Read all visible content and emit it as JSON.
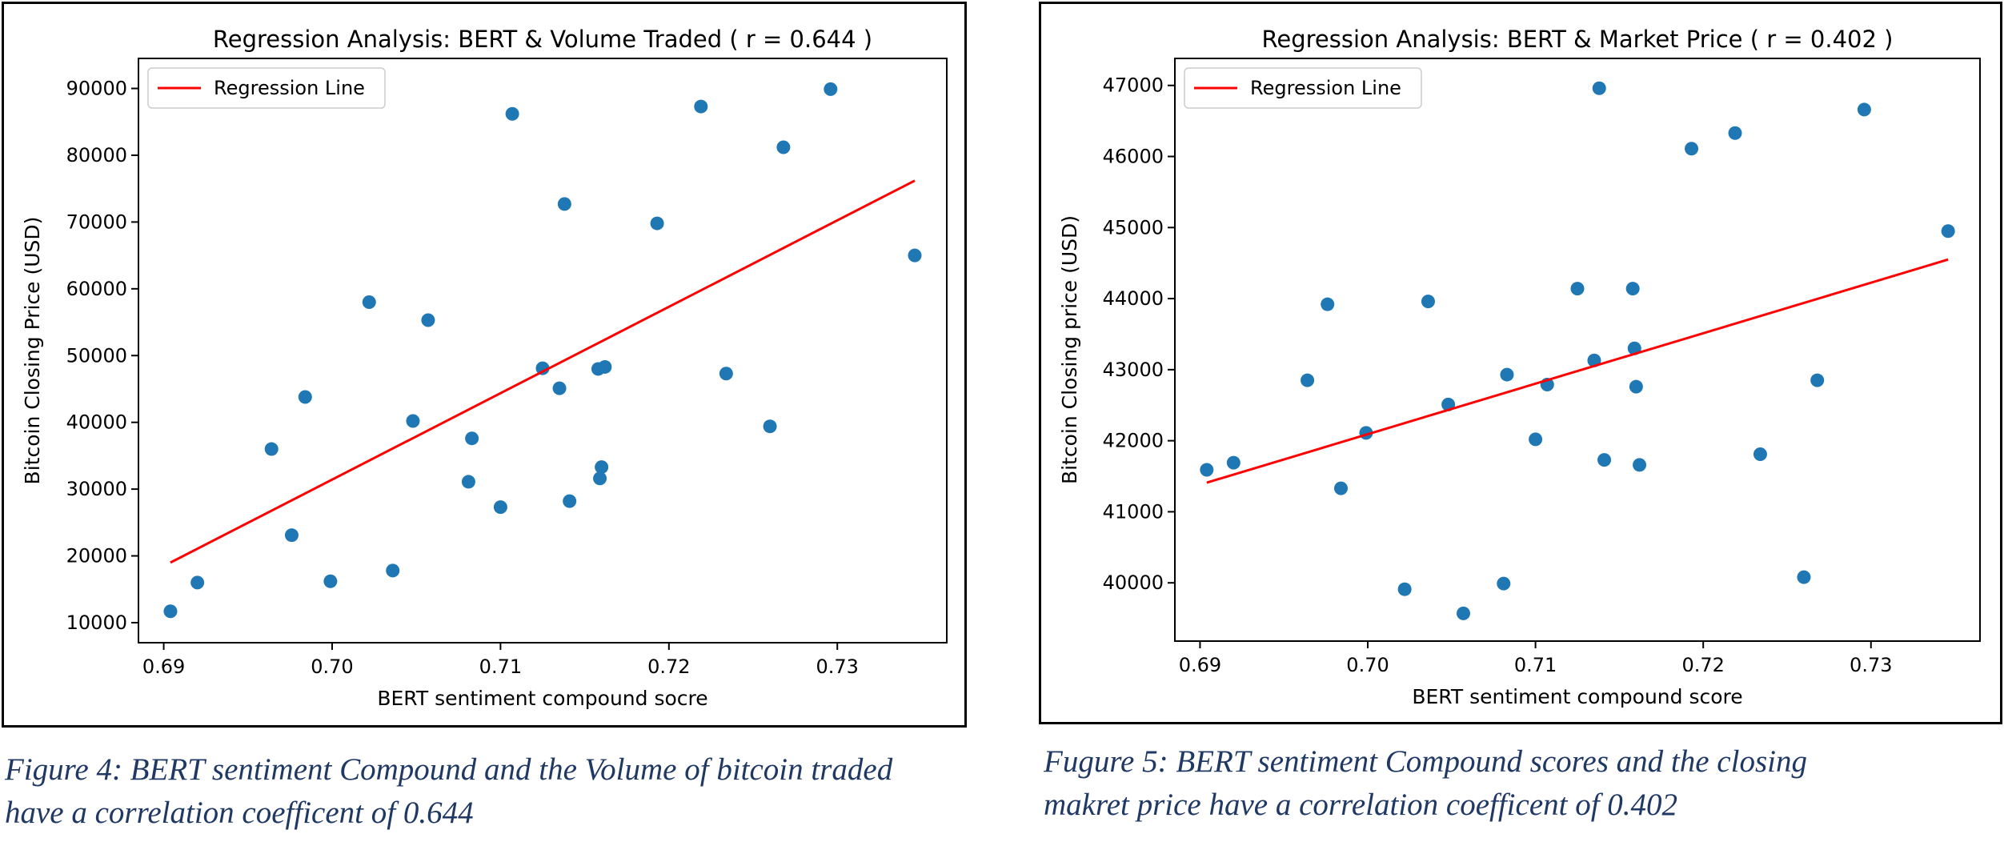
{
  "figures": [
    {
      "caption_lines": [
        "Figure 4: BERT sentiment Compound and the Volume of bitcoin traded",
        "have a correlation coefficent of 0.644"
      ]
    },
    {
      "caption_lines": [
        "Fugure 5: BERT sentiment Compound scores and the closing",
        "makret price have a correlation coefficent of 0.402"
      ]
    }
  ],
  "colors": {
    "points": "#1f77b4",
    "regression": "#ff0000",
    "caption": "#1f3864"
  },
  "chart_data": [
    {
      "type": "scatter",
      "title": "Regression Analysis: BERT & Volume Traded ( r = 0.644 )",
      "xlabel": "BERT sentiment compound socre",
      "ylabel": "Bitcoin Closing Price (USD)",
      "xlim": [
        0.6885,
        0.7365
      ],
      "ylim": [
        7000,
        94500
      ],
      "xticks": [
        0.69,
        0.7,
        0.71,
        0.72,
        0.73
      ],
      "xtick_labels": [
        "0.69",
        "0.70",
        "0.71",
        "0.72",
        "0.73"
      ],
      "yticks": [
        10000,
        20000,
        30000,
        40000,
        50000,
        60000,
        70000,
        80000,
        90000
      ],
      "ytick_labels": [
        "10000",
        "20000",
        "30000",
        "40000",
        "50000",
        "60000",
        "70000",
        "80000",
        "90000"
      ],
      "legend": {
        "entries": [
          "Regression Line"
        ],
        "placement": "top-left"
      },
      "grid": false,
      "points": [
        {
          "x": 0.6904,
          "y": 11700
        },
        {
          "x": 0.692,
          "y": 16000
        },
        {
          "x": 0.6964,
          "y": 36000
        },
        {
          "x": 0.6976,
          "y": 23100
        },
        {
          "x": 0.6984,
          "y": 43800
        },
        {
          "x": 0.6999,
          "y": 16200
        },
        {
          "x": 0.7022,
          "y": 58000
        },
        {
          "x": 0.7036,
          "y": 17800
        },
        {
          "x": 0.7048,
          "y": 40200
        },
        {
          "x": 0.7057,
          "y": 55300
        },
        {
          "x": 0.7081,
          "y": 31100
        },
        {
          "x": 0.7083,
          "y": 37600
        },
        {
          "x": 0.71,
          "y": 27300
        },
        {
          "x": 0.7107,
          "y": 86200
        },
        {
          "x": 0.7125,
          "y": 48100
        },
        {
          "x": 0.7135,
          "y": 45100
        },
        {
          "x": 0.7138,
          "y": 72700
        },
        {
          "x": 0.7141,
          "y": 28200
        },
        {
          "x": 0.7158,
          "y": 48000
        },
        {
          "x": 0.7159,
          "y": 31600
        },
        {
          "x": 0.716,
          "y": 33300
        },
        {
          "x": 0.7162,
          "y": 48300
        },
        {
          "x": 0.7193,
          "y": 69800
        },
        {
          "x": 0.7219,
          "y": 87300
        },
        {
          "x": 0.7234,
          "y": 47300
        },
        {
          "x": 0.726,
          "y": 39400
        },
        {
          "x": 0.7268,
          "y": 81200
        },
        {
          "x": 0.7296,
          "y": 89900
        },
        {
          "x": 0.7346,
          "y": 65000
        }
      ],
      "regression_line": {
        "x": [
          0.6904,
          0.7346
        ],
        "y": [
          19000,
          76200
        ]
      }
    },
    {
      "type": "scatter",
      "title": "Regression Analysis: BERT & Market Price ( r = 0.402 )",
      "xlabel": "BERT sentiment compound score",
      "ylabel": "Bitcoin Closing price (USD)",
      "xlim": [
        0.6885,
        0.7365
      ],
      "ylim": [
        39180,
        47380
      ],
      "xticks": [
        0.69,
        0.7,
        0.71,
        0.72,
        0.73
      ],
      "xtick_labels": [
        "0.69",
        "0.70",
        "0.71",
        "0.72",
        "0.73"
      ],
      "yticks": [
        40000,
        41000,
        42000,
        43000,
        44000,
        45000,
        46000,
        47000
      ],
      "ytick_labels": [
        "40000",
        "41000",
        "42000",
        "43000",
        "44000",
        "45000",
        "46000",
        "47000"
      ],
      "legend": {
        "entries": [
          "Regression Line"
        ],
        "placement": "top-left"
      },
      "grid": false,
      "points": [
        {
          "x": 0.6904,
          "y": 41590
        },
        {
          "x": 0.692,
          "y": 41690
        },
        {
          "x": 0.6964,
          "y": 42850
        },
        {
          "x": 0.6976,
          "y": 43920
        },
        {
          "x": 0.6984,
          "y": 41330
        },
        {
          "x": 0.6999,
          "y": 42110
        },
        {
          "x": 0.7022,
          "y": 39910
        },
        {
          "x": 0.7036,
          "y": 43960
        },
        {
          "x": 0.7048,
          "y": 42510
        },
        {
          "x": 0.7057,
          "y": 39570
        },
        {
          "x": 0.7081,
          "y": 39990
        },
        {
          "x": 0.7083,
          "y": 42930
        },
        {
          "x": 0.71,
          "y": 42020
        },
        {
          "x": 0.7107,
          "y": 42790
        },
        {
          "x": 0.7125,
          "y": 44140
        },
        {
          "x": 0.7135,
          "y": 43130
        },
        {
          "x": 0.7138,
          "y": 46960
        },
        {
          "x": 0.7141,
          "y": 41730
        },
        {
          "x": 0.7158,
          "y": 44140
        },
        {
          "x": 0.7159,
          "y": 43300
        },
        {
          "x": 0.716,
          "y": 42760
        },
        {
          "x": 0.7162,
          "y": 41660
        },
        {
          "x": 0.7193,
          "y": 46110
        },
        {
          "x": 0.7219,
          "y": 46330
        },
        {
          "x": 0.7234,
          "y": 41810
        },
        {
          "x": 0.726,
          "y": 40080
        },
        {
          "x": 0.7268,
          "y": 42850
        },
        {
          "x": 0.7296,
          "y": 46660
        },
        {
          "x": 0.7346,
          "y": 44950
        }
      ],
      "regression_line": {
        "x": [
          0.6904,
          0.7346
        ],
        "y": [
          41410,
          44550
        ]
      }
    }
  ]
}
